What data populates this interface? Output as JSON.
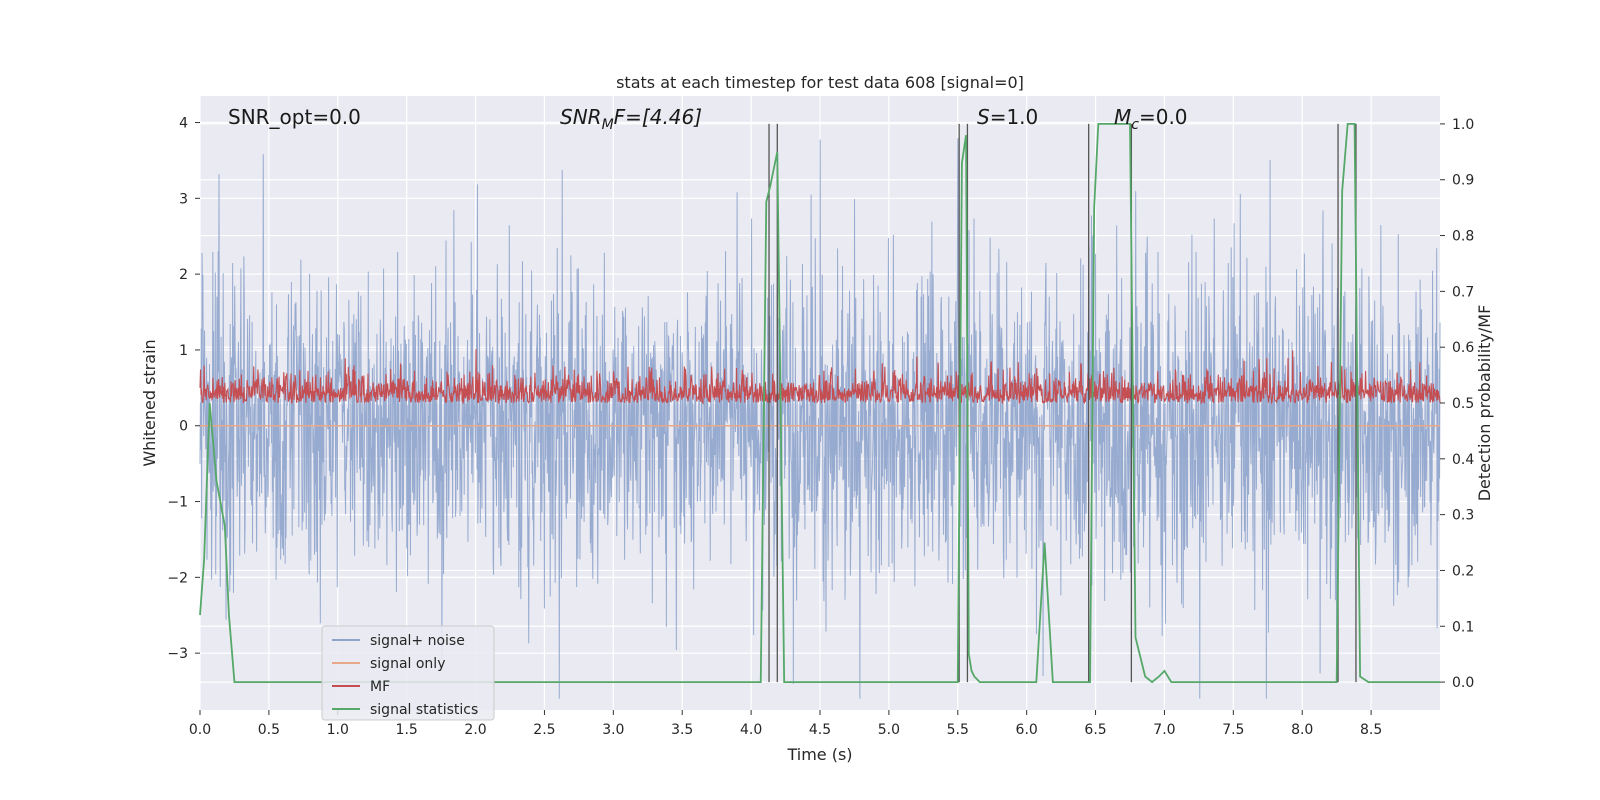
{
  "chart_data": {
    "type": "line",
    "title": "stats at each timestep for test data 608 [signal=0]",
    "xlabel": "Time (s)",
    "ylabel_left": "Whitened strain",
    "ylabel_right": "Detection probability/MF",
    "xlim": [
      0,
      9.0
    ],
    "ylim_left": [
      -3.75,
      4.35
    ],
    "ylim_right": [
      -0.05,
      1.05
    ],
    "x_ticks": [
      "0.0",
      "0.5",
      "1.0",
      "1.5",
      "2.0",
      "2.5",
      "3.0",
      "3.5",
      "4.0",
      "4.5",
      "5.0",
      "5.5",
      "6.0",
      "6.5",
      "7.0",
      "7.5",
      "8.0",
      "8.5"
    ],
    "y_ticks_left": [
      "−3",
      "−2",
      "−1",
      "0",
      "1",
      "2",
      "3",
      "4"
    ],
    "y_ticks_right": [
      "0.0",
      "0.1",
      "0.2",
      "0.3",
      "0.4",
      "0.5",
      "0.6",
      "0.7",
      "0.8",
      "0.9",
      "1.0"
    ],
    "grid": true,
    "legend_position": "lower-left",
    "annotations": {
      "snr_opt": "SNR_opt=0.0",
      "snr_mf_base": "SNR",
      "snr_mf_sub": "M",
      "snr_mf_rest": "F=[4.46]",
      "s_italic": "S",
      "s_rest": "=1.0",
      "mc_italic": "M",
      "mc_sub": "c",
      "mc_rest": "=0.0"
    },
    "series": [
      {
        "name": "signal+ noise",
        "color": "#8ea4cc",
        "axis": "left",
        "description_kind": "noise",
        "duration_s": 9.0,
        "approx_std": 1.0,
        "approx_range": [
          -3.6,
          4.0
        ]
      },
      {
        "name": "signal only",
        "color": "#e8a98a",
        "axis": "left",
        "values": [
          [
            0.0,
            0.0
          ],
          [
            9.0,
            0.0
          ]
        ]
      },
      {
        "name": "MF",
        "color": "#c44e52",
        "axis": "right",
        "approx_baseline": 0.5,
        "approx_range": [
          0.5,
          0.64
        ]
      },
      {
        "name": "signal statistics",
        "color": "#55a868",
        "axis": "right",
        "x": [
          0.0,
          0.03,
          0.07,
          0.12,
          0.18,
          0.21,
          0.25,
          4.07,
          4.11,
          4.14,
          4.19,
          4.24,
          5.5,
          5.53,
          5.56,
          5.58,
          5.6,
          5.62,
          5.66,
          6.07,
          6.13,
          6.19,
          6.46,
          6.49,
          6.52,
          6.55,
          6.75,
          6.79,
          6.86,
          6.91,
          6.96,
          7.0,
          7.05,
          7.1,
          8.25,
          8.29,
          8.33,
          8.38,
          8.42,
          8.48,
          8.55,
          9.0
        ],
        "y": [
          0.12,
          0.22,
          0.5,
          0.36,
          0.28,
          0.12,
          0.0,
          0.0,
          0.86,
          0.89,
          0.95,
          0.0,
          0.0,
          0.93,
          0.98,
          0.05,
          0.02,
          0.01,
          0.0,
          0.0,
          0.25,
          0.0,
          0.0,
          0.85,
          1.0,
          1.0,
          1.0,
          0.08,
          0.01,
          0.0,
          0.01,
          0.02,
          0.0,
          0.0,
          0.0,
          0.88,
          1.0,
          1.0,
          0.01,
          0.0,
          0.0,
          0.0
        ]
      }
    ],
    "vertical_lines_x": [
      4.13,
      4.19,
      5.51,
      5.57,
      6.45,
      6.76,
      8.26,
      8.39
    ]
  }
}
